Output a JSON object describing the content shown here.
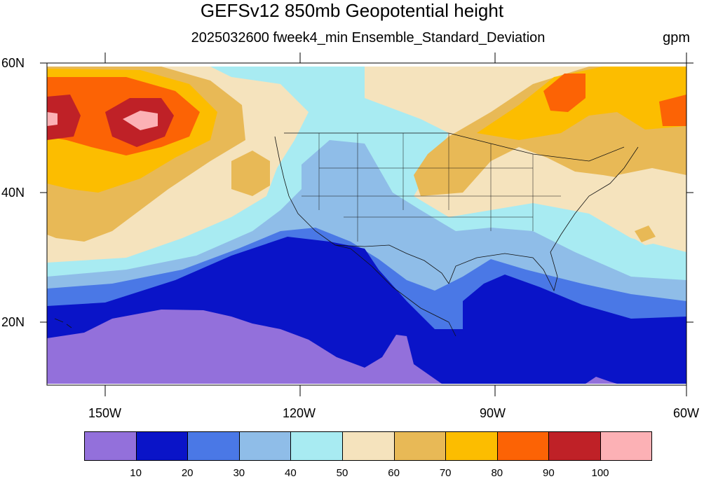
{
  "title": "GEFSv12 850mb Geopotential height",
  "subtitle": "2025032600 fweek4_min Ensemble_Standard_Deviation",
  "units": "gpm",
  "lat_labels": [
    "60N",
    "40N",
    "20N"
  ],
  "lon_labels": [
    "150W",
    "120W",
    "90W",
    "60W"
  ],
  "colorbar": {
    "colors": [
      "#9370db",
      "#0a14c8",
      "#4a78e6",
      "#8fbde8",
      "#a8ebf2",
      "#f5e3bd",
      "#e8b956",
      "#fcbd00",
      "#fc6305",
      "#bf2127",
      "#fcb1b5"
    ],
    "labels": [
      "10",
      "20",
      "30",
      "40",
      "50",
      "60",
      "70",
      "80",
      "90",
      "100"
    ]
  },
  "colors": {
    "c10": "#9370db",
    "c20": "#0a14c8",
    "c30": "#4a78e6",
    "c40": "#8fbde8",
    "c50": "#a8ebf2",
    "c60": "#f5e3bd",
    "c70": "#e8b956",
    "c80": "#fcbd00",
    "c90": "#fc6305",
    "c100": "#bf2127",
    "c110": "#fcb1b5"
  }
}
